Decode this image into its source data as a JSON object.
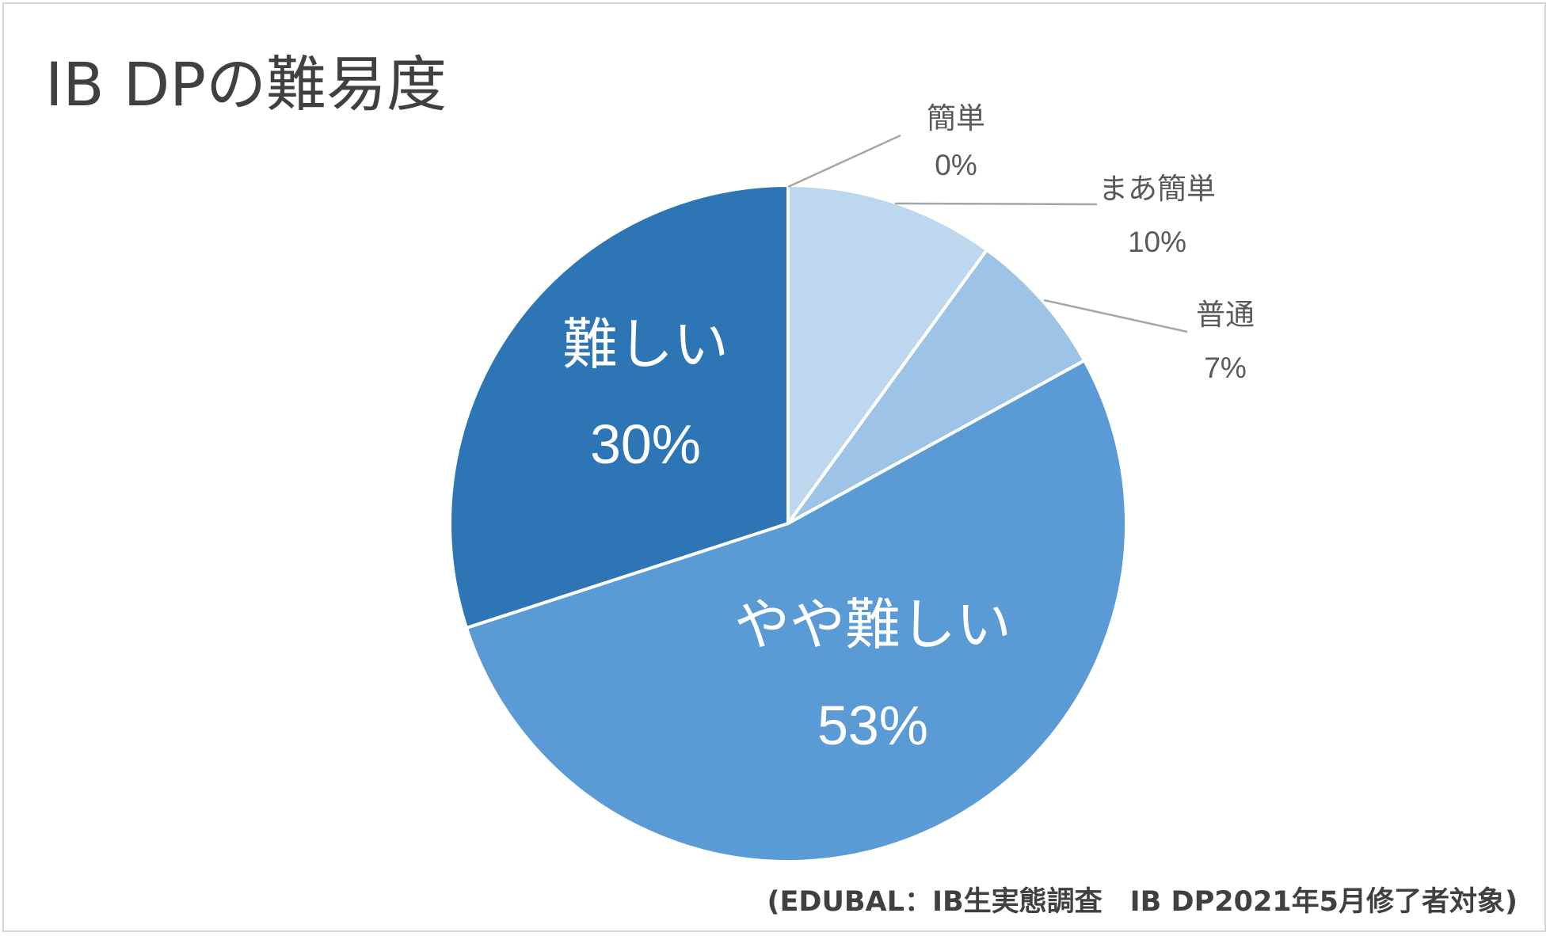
{
  "title": "IB DPの難易度",
  "source": "(EDUBAL：IB生実態調査　IB DP2021年5月修了者対象)",
  "colors": {
    "background": "#ffffff",
    "slice_separator": "#ffffff",
    "leader_line": "#a6a6a6",
    "outside_label": "#595959",
    "inside_label": "#ffffff"
  },
  "chart_data": {
    "type": "pie",
    "title": "IB DPの難易度",
    "start": "12 o'clock, clockwise",
    "slices": [
      {
        "label": "簡単",
        "value": 0,
        "percent_label": "0%",
        "color": "#bdd7ee",
        "label_position": "outside"
      },
      {
        "label": "まあ簡単",
        "value": 10,
        "percent_label": "10%",
        "color": "#bdd7ee",
        "label_position": "outside"
      },
      {
        "label": "普通",
        "value": 7,
        "percent_label": "7%",
        "color": "#9dc3e6",
        "label_position": "outside"
      },
      {
        "label": "やや難しい",
        "value": 53,
        "percent_label": "53%",
        "color": "#5b9bd5",
        "label_position": "inside"
      },
      {
        "label": "難しい",
        "value": 30,
        "percent_label": "30%",
        "color": "#2e75b6",
        "label_position": "inside"
      }
    ]
  }
}
